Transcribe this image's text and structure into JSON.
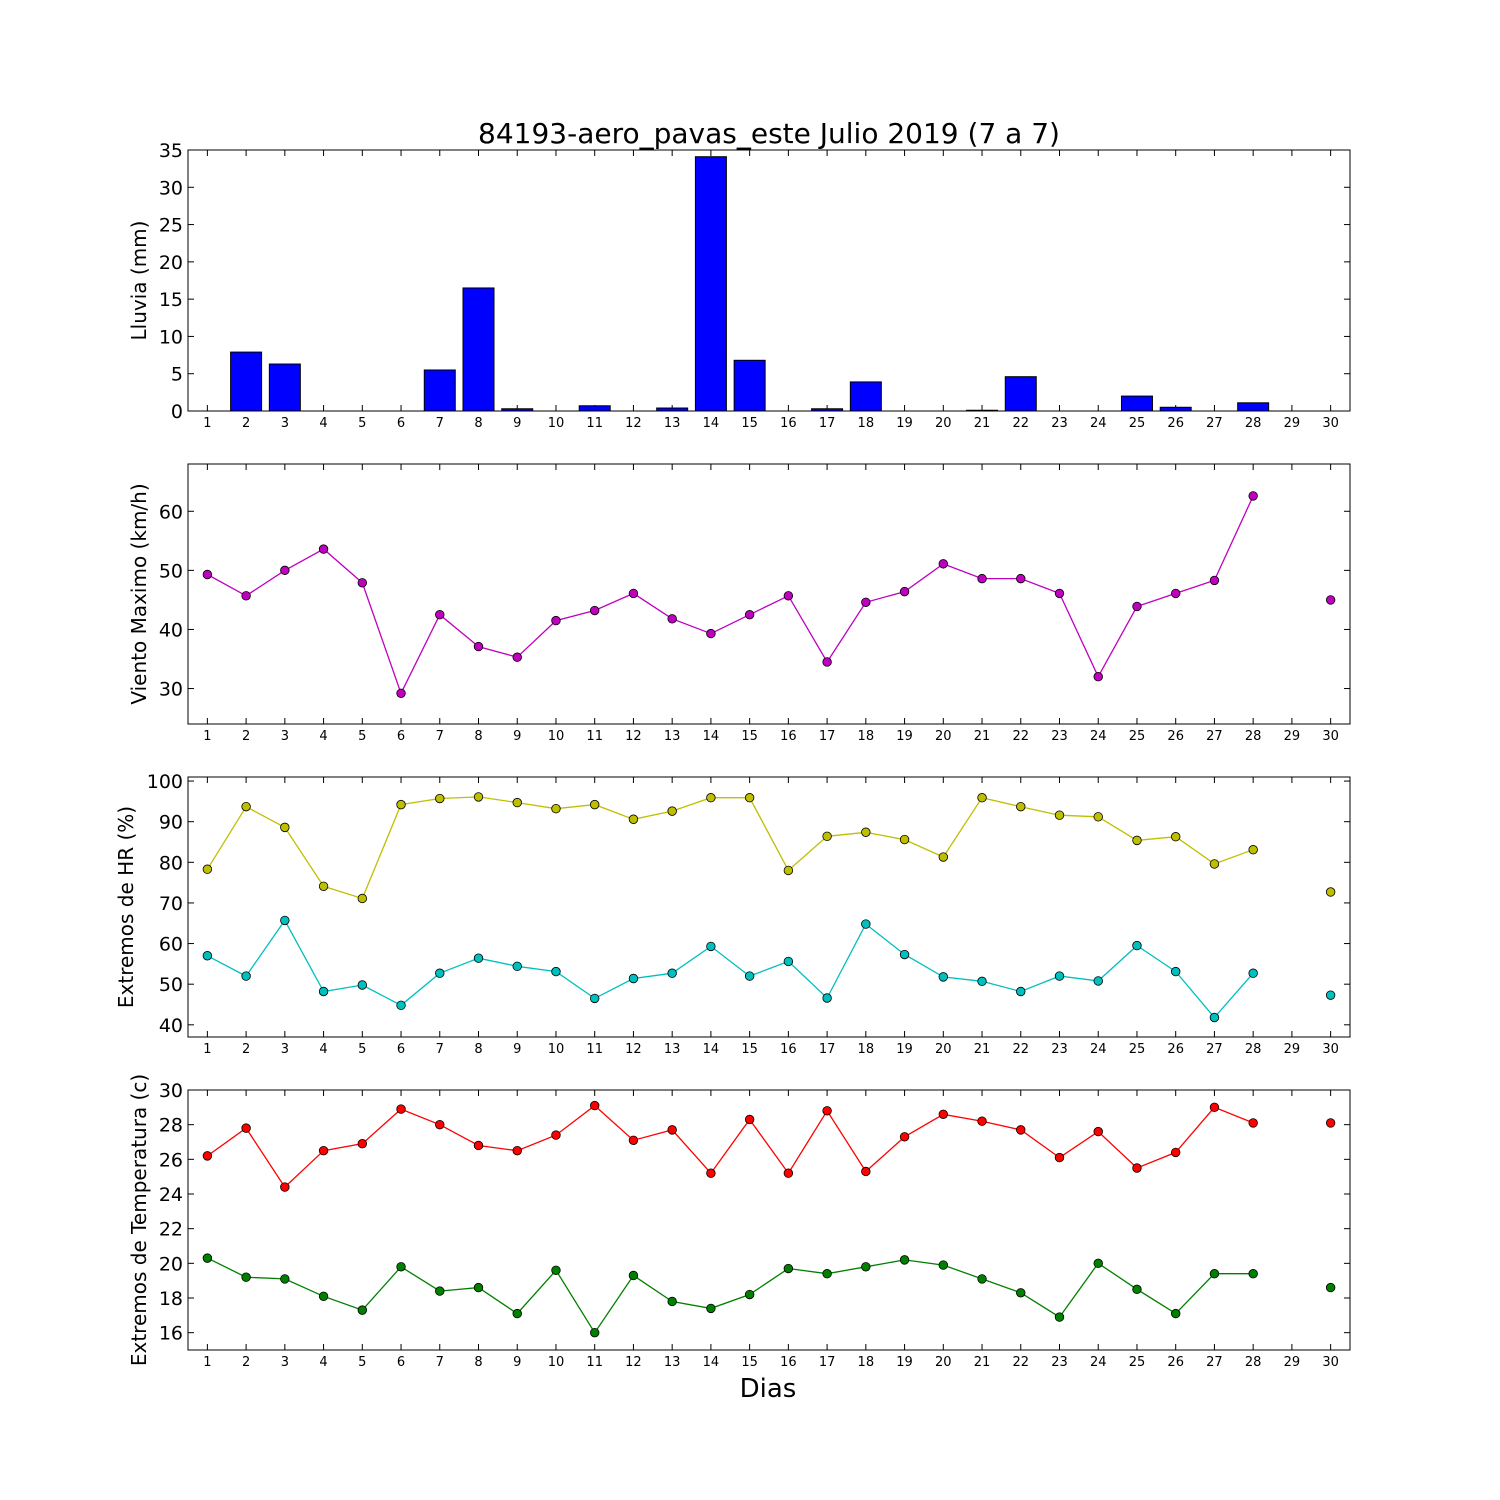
{
  "title": "84193-aero_pavas_este Julio 2019  (7 a 7)",
  "xlabel": "Dias",
  "x_ticks": [
    "1",
    "2",
    "3",
    "4",
    "5",
    "6",
    "7",
    "8",
    "9",
    "10",
    "11",
    "12",
    "13",
    "14",
    "15",
    "16",
    "17",
    "18",
    "19",
    "20",
    "21",
    "22",
    "23",
    "24",
    "25",
    "26",
    "27",
    "28",
    "29",
    "30"
  ],
  "chart_data": [
    {
      "type": "bar",
      "ylabel": "Lluvia (mm)",
      "ylim": [
        0,
        35
      ],
      "yticks": [
        0,
        5,
        10,
        15,
        20,
        25,
        30,
        35
      ],
      "grid": false,
      "x": [
        1,
        2,
        3,
        4,
        5,
        6,
        7,
        8,
        9,
        10,
        11,
        12,
        13,
        14,
        15,
        16,
        17,
        18,
        19,
        20,
        21,
        22,
        23,
        24,
        25,
        26,
        27,
        28,
        29,
        30
      ],
      "series": [
        {
          "color": "#0000ff",
          "values": [
            0,
            7.9,
            6.3,
            0,
            0,
            0,
            5.5,
            16.5,
            0.3,
            0,
            0.7,
            0,
            0.4,
            34.1,
            6.8,
            0,
            0.3,
            3.9,
            0,
            0,
            0.1,
            4.6,
            0,
            0,
            2.0,
            0.5,
            0,
            1.1,
            null,
            null
          ]
        }
      ]
    },
    {
      "type": "line",
      "ylabel": "Viento Maximo (km/h)",
      "ylim": [
        24,
        68
      ],
      "yticks": [
        30,
        40,
        50,
        60
      ],
      "grid": false,
      "x": [
        1,
        2,
        3,
        4,
        5,
        6,
        7,
        8,
        9,
        10,
        11,
        12,
        13,
        14,
        15,
        16,
        17,
        18,
        19,
        20,
        21,
        22,
        23,
        24,
        25,
        26,
        27,
        28,
        29,
        30
      ],
      "series": [
        {
          "color": "#bf00bf",
          "values": [
            49.3,
            45.7,
            50.0,
            53.6,
            47.9,
            29.2,
            42.5,
            37.1,
            35.3,
            41.5,
            43.2,
            46.1,
            41.8,
            39.3,
            42.5,
            45.7,
            34.5,
            44.6,
            46.4,
            51.1,
            48.6,
            48.6,
            46.1,
            32.0,
            43.9,
            46.1,
            48.3,
            62.6,
            null,
            45.0
          ]
        }
      ]
    },
    {
      "type": "line",
      "ylabel": "Extremos de HR (%)",
      "ylim": [
        37,
        101
      ],
      "yticks": [
        40,
        50,
        60,
        70,
        80,
        90,
        100
      ],
      "grid": false,
      "x": [
        1,
        2,
        3,
        4,
        5,
        6,
        7,
        8,
        9,
        10,
        11,
        12,
        13,
        14,
        15,
        16,
        17,
        18,
        19,
        20,
        21,
        22,
        23,
        24,
        25,
        26,
        27,
        28,
        29,
        30
      ],
      "series": [
        {
          "color": "#bfbf00",
          "values": [
            78.3,
            93.7,
            88.6,
            74.1,
            71.1,
            94.2,
            95.7,
            96.1,
            94.7,
            93.2,
            94.2,
            90.6,
            92.6,
            95.9,
            95.9,
            78.0,
            86.4,
            87.4,
            85.6,
            81.3,
            95.9,
            93.7,
            91.6,
            91.2,
            85.4,
            86.3,
            79.6,
            83.1,
            null,
            72.7
          ]
        },
        {
          "color": "#00bfbf",
          "values": [
            57.0,
            52.0,
            65.7,
            48.2,
            49.8,
            44.8,
            52.7,
            56.4,
            54.4,
            53.1,
            46.5,
            51.4,
            52.7,
            59.3,
            52.0,
            55.6,
            46.6,
            64.8,
            57.3,
            51.8,
            50.7,
            48.2,
            52.0,
            50.8,
            59.5,
            53.1,
            41.8,
            52.7,
            null,
            47.3
          ]
        }
      ]
    },
    {
      "type": "line",
      "ylabel": "Extremos de Temperatura (c)",
      "ylim": [
        15,
        30
      ],
      "yticks": [
        16,
        18,
        20,
        22,
        24,
        26,
        28,
        30
      ],
      "grid": false,
      "x": [
        1,
        2,
        3,
        4,
        5,
        6,
        7,
        8,
        9,
        10,
        11,
        12,
        13,
        14,
        15,
        16,
        17,
        18,
        19,
        20,
        21,
        22,
        23,
        24,
        25,
        26,
        27,
        28,
        29,
        30
      ],
      "series": [
        {
          "color": "#ff0000",
          "values": [
            26.2,
            27.8,
            24.4,
            26.5,
            26.9,
            28.9,
            28.0,
            26.8,
            26.5,
            27.4,
            29.1,
            27.1,
            27.7,
            25.2,
            28.3,
            25.2,
            28.8,
            25.3,
            27.3,
            28.6,
            28.2,
            27.7,
            26.1,
            27.6,
            25.5,
            26.4,
            29.0,
            28.1,
            null,
            28.1
          ]
        },
        {
          "color": "#008000",
          "values": [
            20.3,
            19.2,
            19.1,
            18.1,
            17.3,
            19.8,
            18.4,
            18.6,
            17.1,
            19.6,
            16.0,
            19.3,
            17.8,
            17.4,
            18.2,
            19.7,
            19.4,
            19.8,
            20.2,
            19.9,
            19.1,
            18.3,
            16.9,
            20.0,
            18.5,
            17.1,
            19.4,
            19.4,
            null,
            18.6
          ]
        }
      ]
    }
  ]
}
